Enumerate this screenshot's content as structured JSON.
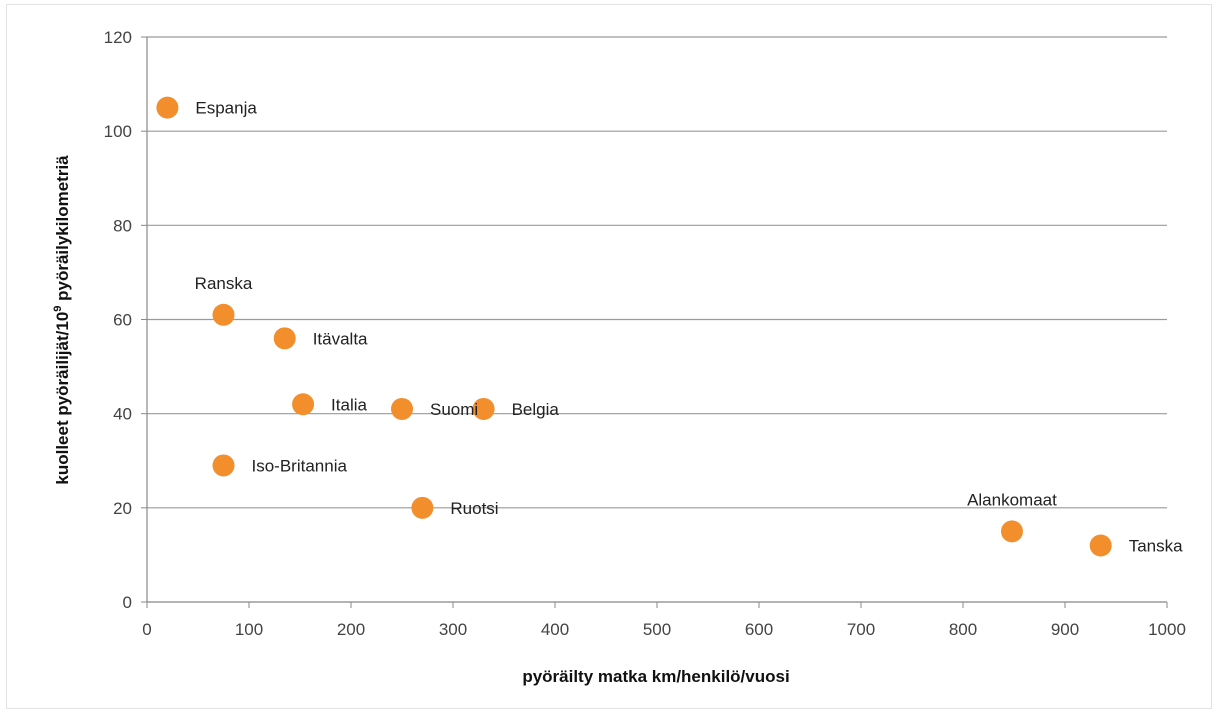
{
  "chart_data": {
    "type": "scatter",
    "xlabel": "pyöräilty matka km/henkilö/vuosi",
    "ylabel_main": "kuolleet pyöräilijät/10",
    "ylabel_sup": "9",
    "ylabel_rest": " pyöräilykilometriä",
    "xlim": [
      0,
      1000
    ],
    "ylim": [
      0,
      120
    ],
    "x_ticks": [
      "0",
      "100",
      "200",
      "300",
      "400",
      "500",
      "600",
      "700",
      "800",
      "900",
      "1000"
    ],
    "y_ticks": [
      "0",
      "20",
      "40",
      "60",
      "80",
      "100",
      "120"
    ],
    "grid": "horizontal",
    "marker_color": "#f28e2b",
    "points": [
      {
        "label": "Espanja",
        "x": 20,
        "y": 105,
        "label_pos": "right"
      },
      {
        "label": "Ranska",
        "x": 75,
        "y": 61,
        "label_pos": "above"
      },
      {
        "label": "Itävalta",
        "x": 135,
        "y": 56,
        "label_pos": "right"
      },
      {
        "label": "Italia",
        "x": 153,
        "y": 42,
        "label_pos": "right"
      },
      {
        "label": "Suomi",
        "x": 250,
        "y": 41,
        "label_pos": "right"
      },
      {
        "label": "Belgia",
        "x": 330,
        "y": 41,
        "label_pos": "right"
      },
      {
        "label": "Iso-Britannia",
        "x": 75,
        "y": 29,
        "label_pos": "right"
      },
      {
        "label": "Ruotsi",
        "x": 270,
        "y": 20,
        "label_pos": "right"
      },
      {
        "label": "Alankomaat",
        "x": 848,
        "y": 15,
        "label_pos": "above"
      },
      {
        "label": "Tanska",
        "x": 935,
        "y": 12,
        "label_pos": "right"
      }
    ]
  }
}
